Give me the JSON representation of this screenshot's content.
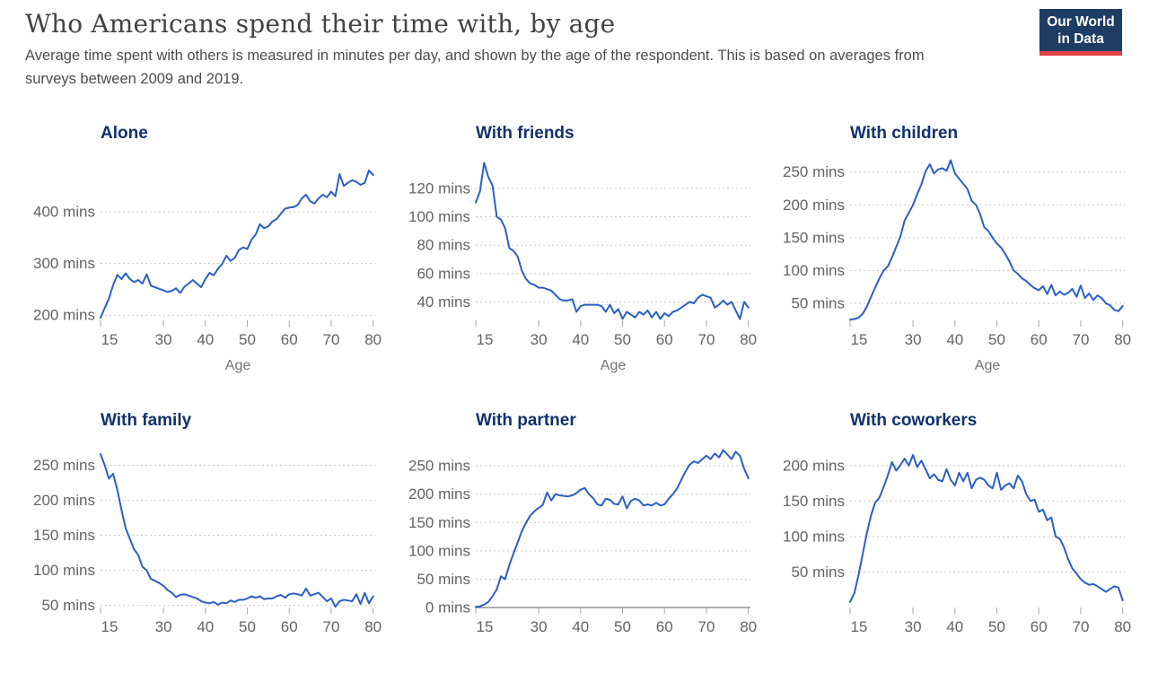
{
  "header": {
    "title": "Who Americans spend their time with, by age",
    "subtitle": "Average time spent with others is measured in minutes per day, and shown by the age of the respondent. This is based on averages from surveys between 2009 and 2019.",
    "logo": {
      "line1": "Our World",
      "line2": "in Data"
    }
  },
  "style": {
    "line_color": "#2b5fc4",
    "grid_color": "#c9c9c9",
    "tick_color": "#a8a8a8",
    "axis_text_color": "#636363",
    "chart_title_color": "#12316e",
    "baseline_color": "#909090",
    "logo_bg": "#1d3d63",
    "logo_red": "#e0403f"
  },
  "chart_data": {
    "type": "line",
    "unit_suffix": " mins",
    "xlabel": "Age",
    "x_ticks": [
      15,
      30,
      40,
      50,
      60,
      70,
      80
    ],
    "xlim": [
      15,
      80.5
    ],
    "grid": "dotted-horizontal",
    "legend_position": "none",
    "ages": [
      15,
      16,
      17,
      18,
      19,
      20,
      21,
      22,
      23,
      24,
      25,
      26,
      27,
      28,
      29,
      30,
      31,
      32,
      33,
      34,
      35,
      36,
      37,
      38,
      39,
      40,
      41,
      42,
      43,
      44,
      45,
      46,
      47,
      48,
      49,
      50,
      51,
      52,
      53,
      54,
      55,
      56,
      57,
      58,
      59,
      60,
      61,
      62,
      63,
      64,
      65,
      66,
      67,
      68,
      69,
      70,
      71,
      72,
      73,
      74,
      75,
      76,
      77,
      78,
      79,
      80
    ],
    "charts": [
      {
        "title": "Alone",
        "y_ticks": [
          200,
          300,
          400
        ],
        "ylim": [
          190,
          511
        ],
        "zero_baseline": false,
        "show_xlabel": true,
        "values": [
          195,
          214,
          232,
          258,
          278,
          270,
          281,
          270,
          264,
          268,
          261,
          279,
          257,
          254,
          251,
          248,
          245,
          247,
          252,
          243,
          255,
          261,
          268,
          261,
          254,
          270,
          282,
          277,
          290,
          299,
          315,
          305,
          311,
          326,
          331,
          328,
          346,
          356,
          376,
          368,
          372,
          381,
          386,
          396,
          406,
          408,
          409,
          413,
          426,
          433,
          420,
          416,
          426,
          433,
          428,
          439,
          430,
          473,
          450,
          456,
          461,
          458,
          452,
          456,
          480,
          471
        ]
      },
      {
        "title": "With friends",
        "y_ticks": [
          40,
          60,
          80,
          100,
          120
        ],
        "ylim": [
          27,
          144
        ],
        "zero_baseline": false,
        "show_xlabel": true,
        "values": [
          110,
          118,
          138,
          128,
          122,
          100,
          98,
          92,
          78,
          76,
          72,
          62,
          56,
          53,
          52,
          50,
          50,
          49,
          48,
          45,
          42,
          41,
          41,
          42,
          33,
          37,
          38,
          38,
          38,
          38,
          37,
          33,
          38,
          32,
          35,
          28,
          33,
          31,
          29,
          33,
          31,
          34,
          29,
          33,
          28,
          32,
          30,
          33,
          34,
          36,
          38,
          40,
          39,
          43,
          45,
          44,
          43,
          36,
          38,
          41,
          38,
          40,
          34,
          28,
          40,
          36
        ]
      },
      {
        "title": "With children",
        "y_ticks": [
          50,
          100,
          150,
          200,
          250
        ],
        "ylim": [
          24,
          277
        ],
        "zero_baseline": false,
        "show_xlabel": true,
        "values": [
          25,
          26,
          28,
          34,
          45,
          60,
          74,
          88,
          100,
          106,
          120,
          136,
          152,
          176,
          188,
          200,
          216,
          231,
          251,
          262,
          248,
          254,
          256,
          252,
          268,
          248,
          240,
          232,
          224,
          206,
          200,
          186,
          166,
          160,
          150,
          141,
          135,
          125,
          114,
          100,
          95,
          88,
          84,
          78,
          73,
          70,
          76,
          64,
          78,
          62,
          68,
          63,
          66,
          72,
          60,
          77,
          58,
          65,
          55,
          62,
          58,
          50,
          47,
          40,
          38,
          46
        ]
      },
      {
        "title": "With family",
        "y_ticks": [
          50,
          100,
          150,
          200,
          250
        ],
        "ylim": [
          47,
          284
        ],
        "zero_baseline": false,
        "show_xlabel": false,
        "values": [
          266,
          250,
          231,
          238,
          215,
          186,
          160,
          145,
          130,
          122,
          105,
          100,
          88,
          85,
          82,
          78,
          72,
          68,
          62,
          65,
          66,
          64,
          62,
          60,
          56,
          54,
          53,
          55,
          51,
          54,
          53,
          57,
          55,
          58,
          58,
          60,
          63,
          61,
          63,
          59,
          60,
          60,
          63,
          65,
          61,
          66,
          67,
          66,
          64,
          74,
          64,
          66,
          68,
          62,
          56,
          60,
          48,
          56,
          58,
          57,
          56,
          66,
          52,
          68,
          53,
          63
        ]
      },
      {
        "title": "With partner",
        "y_ticks": [
          0,
          50,
          100,
          150,
          200,
          250
        ],
        "ylim": [
          0,
          293
        ],
        "zero_baseline": true,
        "show_xlabel": false,
        "values": [
          1,
          2,
          5,
          10,
          20,
          32,
          55,
          50,
          75,
          95,
          115,
          135,
          150,
          162,
          170,
          176,
          181,
          203,
          189,
          200,
          198,
          197,
          196,
          198,
          202,
          208,
          211,
          200,
          193,
          182,
          180,
          192,
          190,
          183,
          182,
          196,
          175,
          188,
          192,
          189,
          180,
          182,
          180,
          185,
          180,
          182,
          192,
          200,
          210,
          225,
          240,
          252,
          258,
          255,
          262,
          268,
          262,
          272,
          265,
          278,
          270,
          262,
          275,
          268,
          245,
          228
        ]
      },
      {
        "title": "With coworkers",
        "y_ticks": [
          50,
          100,
          150,
          200
        ],
        "ylim": [
          0,
          234
        ],
        "zero_baseline": false,
        "show_xlabel": false,
        "values": [
          8,
          20,
          45,
          75,
          105,
          130,
          148,
          155,
          170,
          186,
          205,
          193,
          201,
          210,
          200,
          215,
          198,
          207,
          195,
          182,
          188,
          180,
          178,
          195,
          180,
          172,
          190,
          178,
          190,
          168,
          180,
          183,
          180,
          172,
          168,
          190,
          166,
          172,
          175,
          168,
          186,
          178,
          160,
          150,
          152,
          135,
          138,
          123,
          127,
          100,
          97,
          85,
          68,
          55,
          48,
          40,
          35,
          32,
          33,
          30,
          26,
          22,
          26,
          30,
          28,
          10
        ]
      }
    ]
  }
}
